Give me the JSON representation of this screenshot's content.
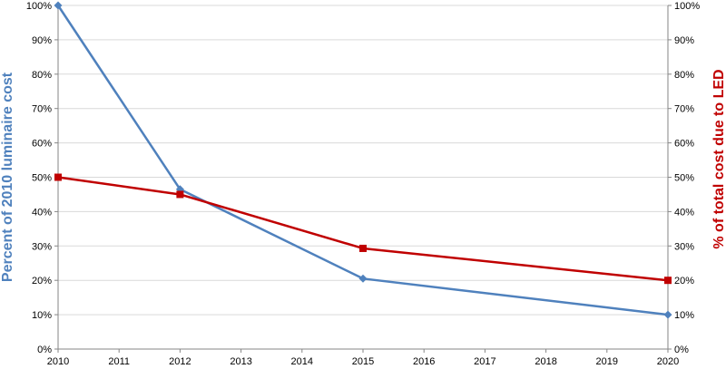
{
  "chart_data": {
    "type": "line",
    "x": [
      2010,
      2012,
      2015,
      2020
    ],
    "x_ticks": [
      "2010",
      "2011",
      "2012",
      "2013",
      "2014",
      "2015",
      "2016",
      "2017",
      "2018",
      "2019",
      "2020"
    ],
    "xlim": [
      2010,
      2020
    ],
    "ylim": [
      0,
      100
    ],
    "y_ticks": [
      "0%",
      "10%",
      "20%",
      "30%",
      "40%",
      "50%",
      "60%",
      "70%",
      "80%",
      "90%",
      "100%"
    ],
    "y2lim": [
      0,
      100
    ],
    "y2_ticks": [
      "0%",
      "10%",
      "20%",
      "30%",
      "40%",
      "50%",
      "60%",
      "70%",
      "80%",
      "90%",
      "100%"
    ],
    "ylabel": "Percent of 2010 luminaire cost",
    "y2label": "% of total cost due to LED",
    "grid": true,
    "series": [
      {
        "values": [
          100,
          46.5,
          20.5,
          10
        ],
        "color": "#4F81BD",
        "marker": "diamond",
        "axis": "left"
      },
      {
        "values": [
          50,
          45,
          29.3,
          20
        ],
        "color": "#C00000",
        "marker": "square",
        "axis": "right"
      }
    ],
    "colors": {
      "left_axis_title": "#4F81BD",
      "right_axis_title": "#C00000",
      "grid": "#d9d9d9",
      "axis": "#868686"
    }
  }
}
